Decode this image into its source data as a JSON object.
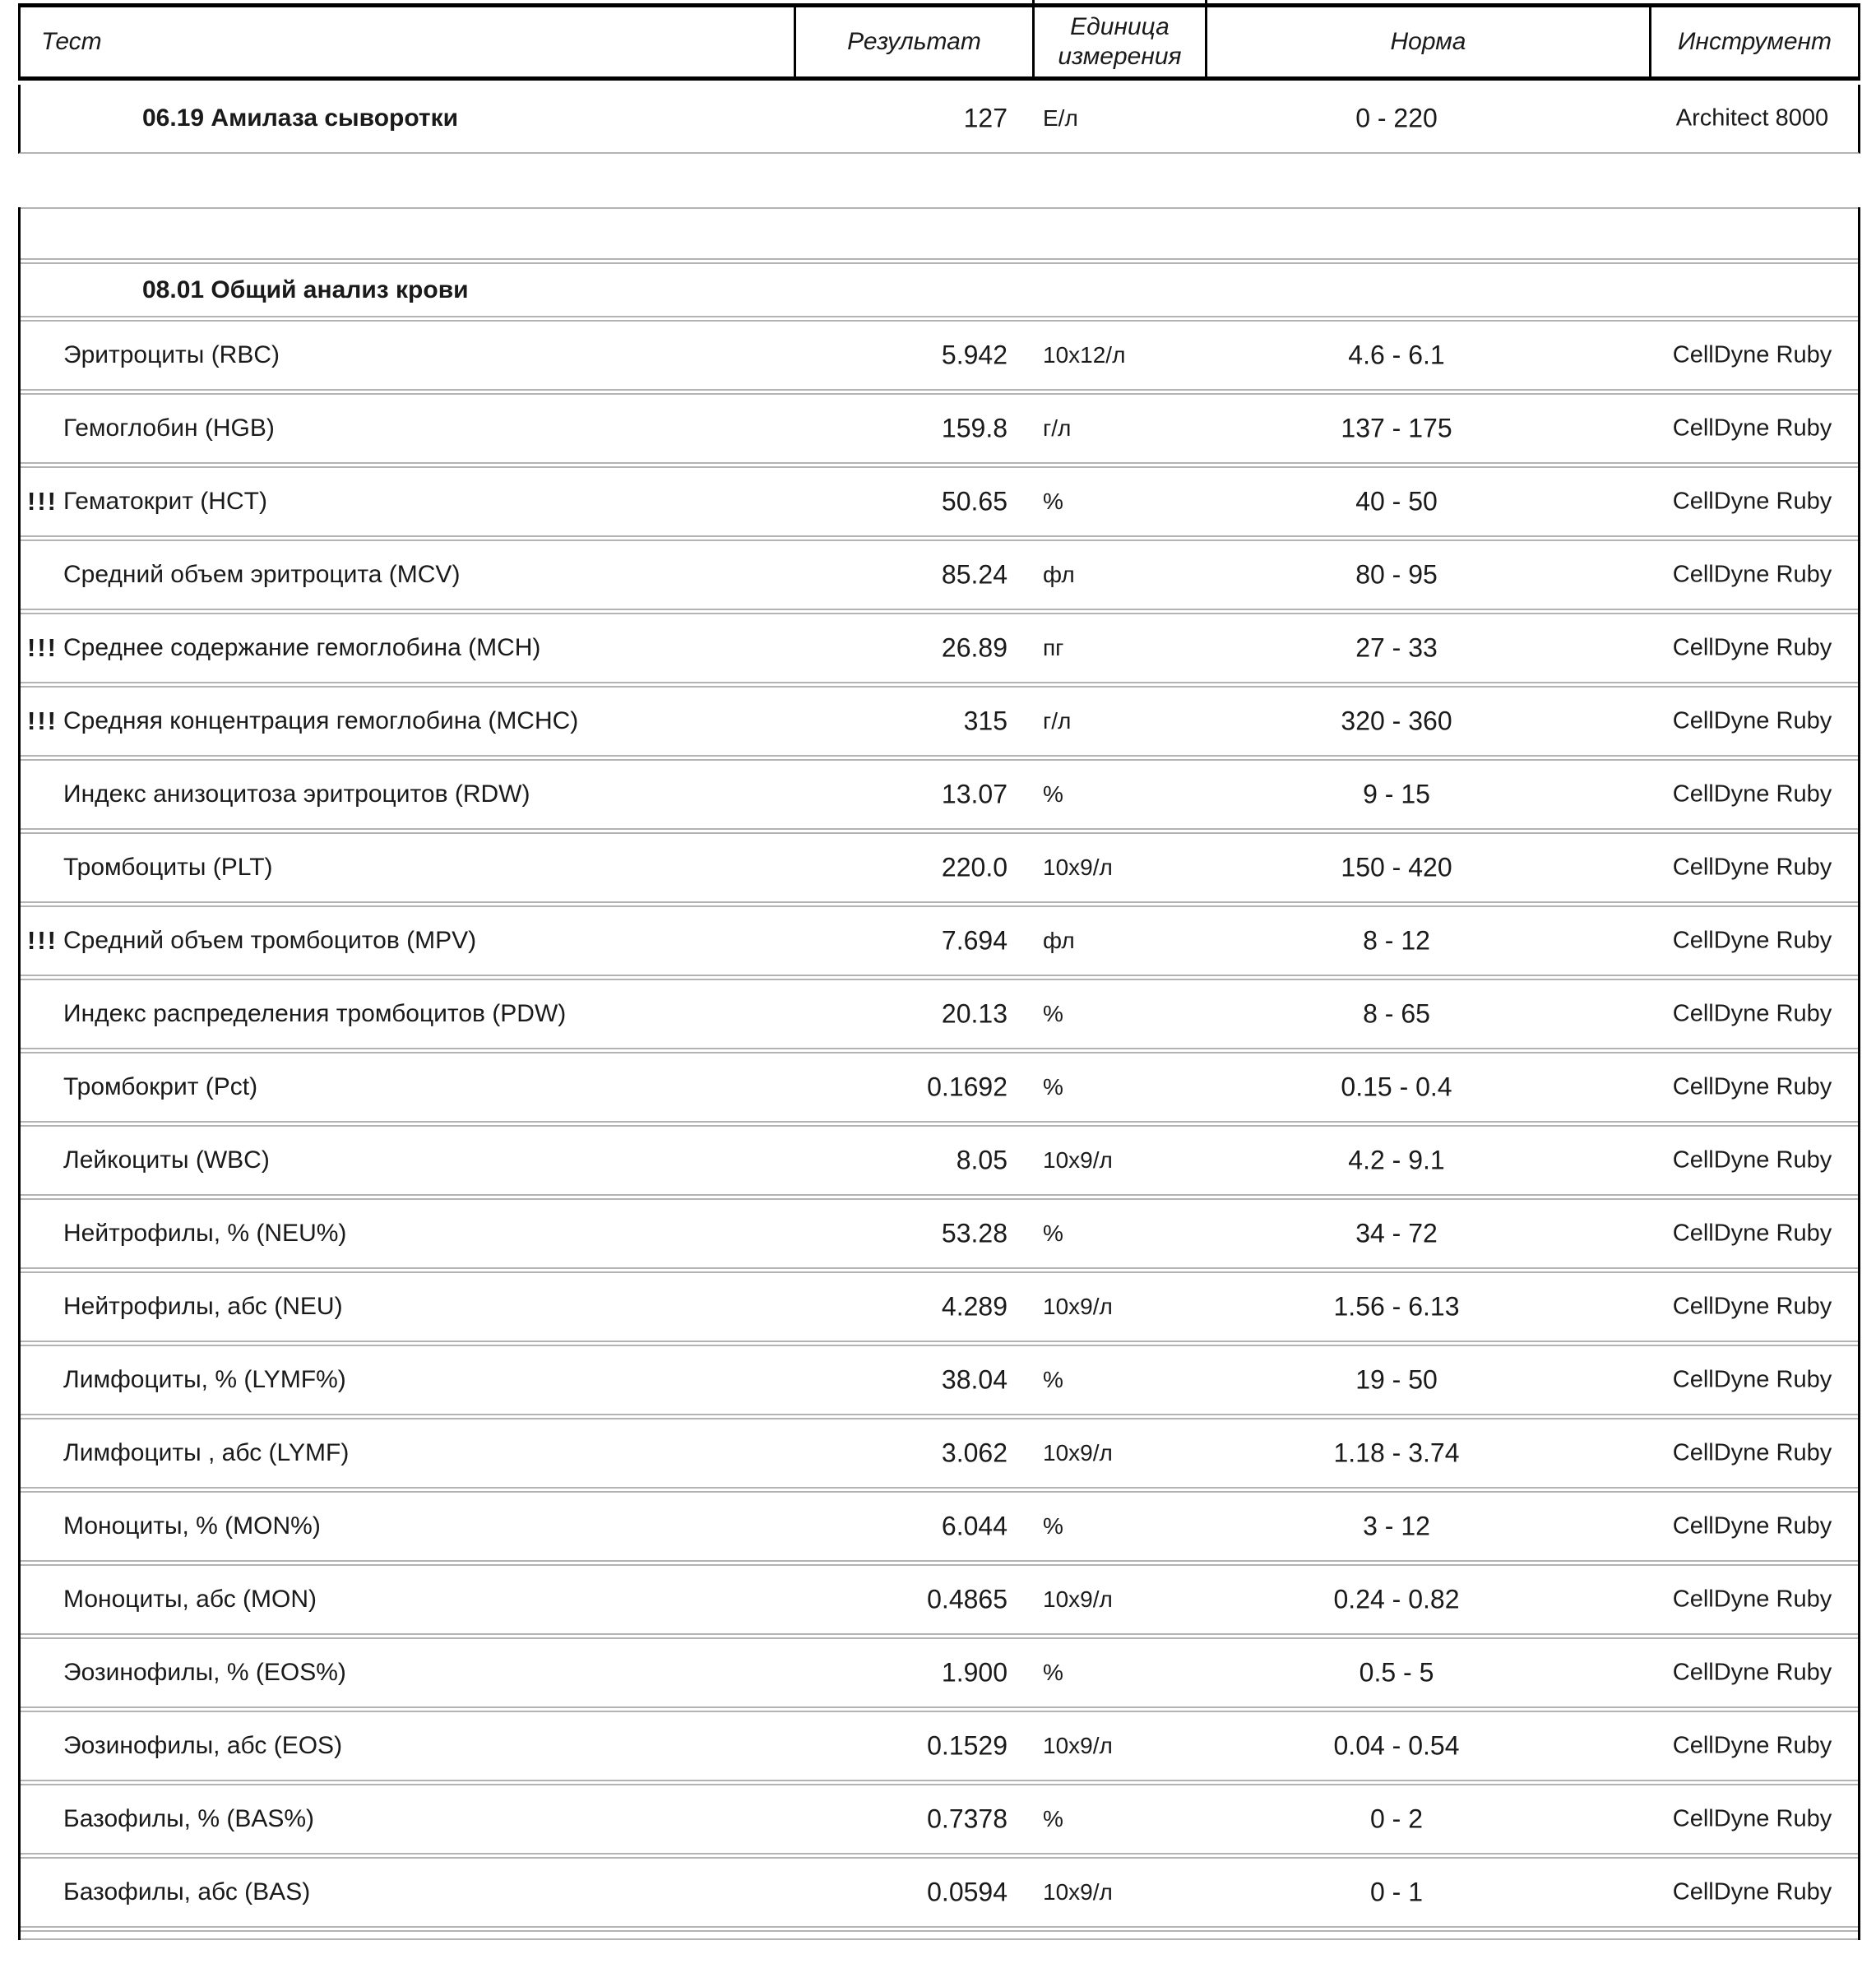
{
  "table1": {
    "columns": {
      "test": "Тест",
      "result": "Результат",
      "unit": "Единица измерения",
      "norm": "Норма",
      "instrument": "Инструмент"
    },
    "rows": [
      {
        "section": "06.19 Амилаза сыворотки",
        "result": "127",
        "unit": "Е/л",
        "norm": "0 - 220",
        "instrument": "Architect 8000"
      }
    ]
  },
  "table2": {
    "section_title": "08.01 Общий анализ крови",
    "rows": [
      {
        "flag": "",
        "name": "Эритроциты (RBC)",
        "result": "5.942",
        "unit": "10х12/л",
        "norm": "4.6 - 6.1",
        "instrument": "CellDyne Ruby"
      },
      {
        "flag": "",
        "name": "Гемоглобин (HGB)",
        "result": "159.8",
        "unit": "г/л",
        "norm": "137 - 175",
        "instrument": "CellDyne Ruby"
      },
      {
        "flag": "!!!",
        "name": "Гематокрит (HCT)",
        "result": "50.65",
        "unit": "%",
        "norm": "40 - 50",
        "instrument": "CellDyne Ruby"
      },
      {
        "flag": "",
        "name": "Средний объем эритроцита (MCV)",
        "result": "85.24",
        "unit": "фл",
        "norm": "80 - 95",
        "instrument": "CellDyne Ruby"
      },
      {
        "flag": "!!!",
        "name": "Среднее содержание гемоглобина (MCH)",
        "result": "26.89",
        "unit": "пг",
        "norm": "27 - 33",
        "instrument": "CellDyne Ruby"
      },
      {
        "flag": "!!!",
        "name": "Средняя концентрация гемоглобина (MCHC)",
        "result": "315",
        "unit": "г/л",
        "norm": "320 - 360",
        "instrument": "CellDyne Ruby"
      },
      {
        "flag": "",
        "name": "Индекс анизоцитоза эритроцитов (RDW)",
        "result": "13.07",
        "unit": "%",
        "norm": "9 - 15",
        "instrument": "CellDyne Ruby"
      },
      {
        "flag": "",
        "name": "Тромбоциты (PLT)",
        "result": "220.0",
        "unit": "10х9/л",
        "norm": "150 - 420",
        "instrument": "CellDyne Ruby"
      },
      {
        "flag": "!!!",
        "name": "Средний объем тромбоцитов (MPV)",
        "result": "7.694",
        "unit": "фл",
        "norm": "8 - 12",
        "instrument": "CellDyne Ruby"
      },
      {
        "flag": "",
        "name": "Индекс распределения тромбоцитов (PDW)",
        "result": "20.13",
        "unit": "%",
        "norm": "8 - 65",
        "instrument": "CellDyne Ruby"
      },
      {
        "flag": "",
        "name": "Тромбокрит (Pct)",
        "result": "0.1692",
        "unit": "%",
        "norm": "0.15 - 0.4",
        "instrument": "CellDyne Ruby"
      },
      {
        "flag": "",
        "name": "Лейкоциты (WBC)",
        "result": "8.05",
        "unit": "10х9/л",
        "norm": "4.2 - 9.1",
        "instrument": "CellDyne Ruby"
      },
      {
        "flag": "",
        "name": "Нейтрофилы, % (NEU%)",
        "result": "53.28",
        "unit": "%",
        "norm": "34 - 72",
        "instrument": "CellDyne Ruby"
      },
      {
        "flag": "",
        "name": "Нейтрофилы, абс (NEU)",
        "result": "4.289",
        "unit": "10х9/л",
        "norm": "1.56 - 6.13",
        "instrument": "CellDyne Ruby"
      },
      {
        "flag": "",
        "name": "Лимфоциты, % (LYMF%)",
        "result": "38.04",
        "unit": "%",
        "norm": "19 - 50",
        "instrument": "CellDyne Ruby"
      },
      {
        "flag": "",
        "name": "Лимфоциты , абс (LYMF)",
        "result": "3.062",
        "unit": "10х9/л",
        "norm": "1.18 - 3.74",
        "instrument": "CellDyne Ruby"
      },
      {
        "flag": "",
        "name": "Моноциты, % (MON%)",
        "result": "6.044",
        "unit": "%",
        "norm": "3 - 12",
        "instrument": "CellDyne Ruby"
      },
      {
        "flag": "",
        "name": "Моноциты, абс (MON)",
        "result": "0.4865",
        "unit": "10х9/л",
        "norm": "0.24 - 0.82",
        "instrument": "CellDyne Ruby"
      },
      {
        "flag": "",
        "name": "Эозинофилы, % (EOS%)",
        "result": "1.900",
        "unit": "%",
        "norm": "0.5 - 5",
        "instrument": "CellDyne Ruby"
      },
      {
        "flag": "",
        "name": "Эозинофилы, абс (EOS)",
        "result": "0.1529",
        "unit": "10х9/л",
        "norm": "0.04 - 0.54",
        "instrument": "CellDyne Ruby"
      },
      {
        "flag": "",
        "name": "Базофилы, % (BAS%)",
        "result": "0.7378",
        "unit": "%",
        "norm": "0 - 2",
        "instrument": "CellDyne Ruby"
      },
      {
        "flag": "",
        "name": "Базофилы, абс (BAS)",
        "result": "0.0594",
        "unit": "10х9/л",
        "norm": "0 - 1",
        "instrument": "CellDyne Ruby"
      }
    ]
  }
}
